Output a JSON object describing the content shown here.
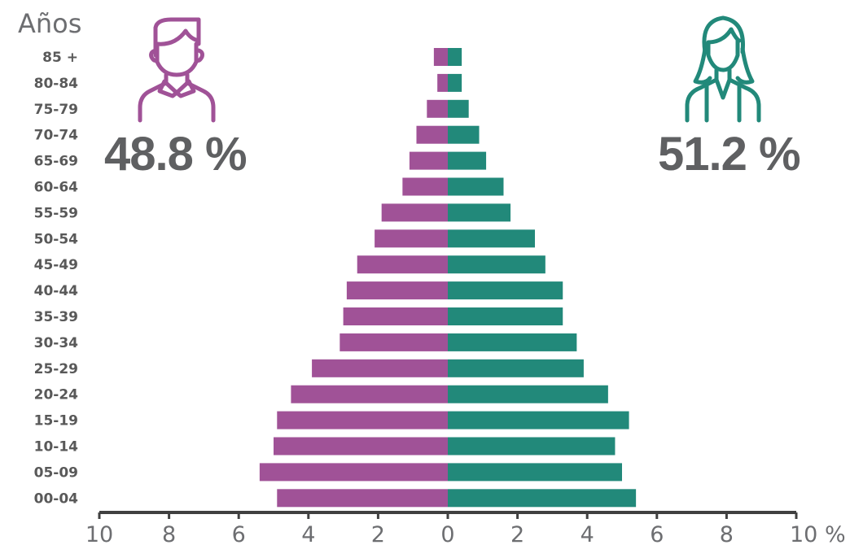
{
  "chart_data": {
    "type": "bar",
    "orientation": "horizontal",
    "layout": "population-pyramid",
    "y_title": "Años",
    "categories": [
      "85 +",
      "80-84",
      "75-79",
      "70-74",
      "65-69",
      "60-64",
      "55-59",
      "50-54",
      "45-49",
      "40-44",
      "35-39",
      "30-34",
      "25-29",
      "20-24",
      "15-19",
      "10-14",
      "05-09",
      "00-04"
    ],
    "series": [
      {
        "side": "left",
        "color": "#a05297",
        "values": [
          0.4,
          0.3,
          0.6,
          0.9,
          1.1,
          1.3,
          1.9,
          2.1,
          2.6,
          2.9,
          3.0,
          3.1,
          3.9,
          4.5,
          4.9,
          5.0,
          5.4,
          4.9
        ]
      },
      {
        "side": "right",
        "color": "#22897a",
        "values": [
          0.4,
          0.4,
          0.6,
          0.9,
          1.1,
          1.6,
          1.8,
          2.5,
          2.8,
          3.3,
          3.3,
          3.7,
          3.9,
          4.6,
          5.2,
          4.8,
          5.0,
          5.4
        ]
      }
    ],
    "x_ticks": [
      "10",
      "8",
      "6",
      "4",
      "2",
      "0",
      "2",
      "4",
      "6",
      "8",
      "10 %"
    ],
    "xlim": [
      -10,
      10
    ],
    "grid": false
  },
  "summary": {
    "male_percent": "48.8 %",
    "female_percent": "51.2 %"
  },
  "icons": {
    "left": "man-icon",
    "right": "woman-icon"
  }
}
